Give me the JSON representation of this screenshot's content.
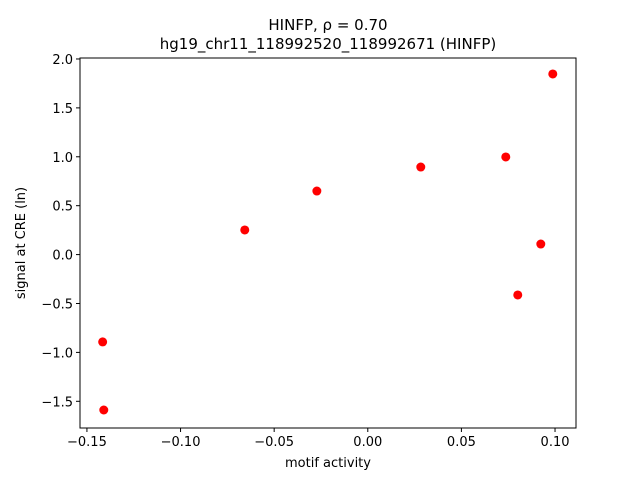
{
  "chart_data": {
    "type": "scatter",
    "title": "HINFP, ρ = 0.70",
    "subtitle": "hg19_chr11_118992520_118992671 (HINFP)",
    "x_label": "motif activity",
    "y_label": "signal at CRE (ln)",
    "color": "#ff0000",
    "grid": false,
    "series": [
      {
        "name": "CRE",
        "color": "#ff0000",
        "x": [
          0.0988,
          0.0737,
          0.0283,
          -0.0272,
          -0.0657,
          0.0924,
          0.0801,
          -0.1416,
          -0.141
        ],
        "values": [
          1.847,
          0.998,
          0.895,
          0.65,
          0.252,
          0.108,
          -0.413,
          -0.893,
          -1.589
        ]
      }
    ],
    "xlim": [
      -0.1537,
      0.1112
    ],
    "ylim": [
      -1.773,
      2.01
    ],
    "xticks": [
      {
        "value": -0.15,
        "label": "−0.15"
      },
      {
        "value": -0.1,
        "label": "−0.10"
      },
      {
        "value": -0.05,
        "label": "−0.05"
      },
      {
        "value": 0,
        "label": "0.00"
      },
      {
        "value": 0.05,
        "label": "0.05"
      },
      {
        "value": 0.1,
        "label": "0.10"
      }
    ],
    "yticks": [
      {
        "value": -1.5,
        "label": "−1.5"
      },
      {
        "value": -1.0,
        "label": "−1.0"
      },
      {
        "value": -0.5,
        "label": "−0.5"
      },
      {
        "value": 0,
        "label": "0.0"
      },
      {
        "value": 0.5,
        "label": "0.5"
      },
      {
        "value": 1.0,
        "label": "1.0"
      },
      {
        "value": 1.5,
        "label": "1.5"
      },
      {
        "value": 2.0,
        "label": "2.0"
      }
    ]
  }
}
